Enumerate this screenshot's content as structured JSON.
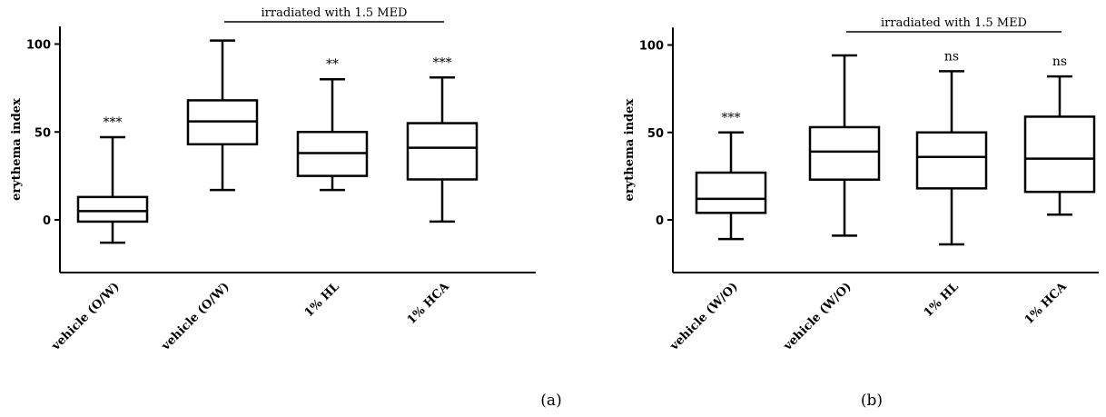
{
  "chart_data": [
    {
      "type": "box",
      "panel_label": "(a)",
      "ylabel": "erythema index",
      "yticks": [
        0,
        50,
        100
      ],
      "ylim": [
        -30,
        110
      ],
      "bracket": {
        "label": "irradiated with 1.5 MED",
        "from_category": 1,
        "to_category": 3
      },
      "categories": [
        "vehicle (O/W)",
        "vehicle (O/W)",
        "1% HL",
        "1% HCA"
      ],
      "boxes": [
        {
          "min": -13,
          "q1": -1,
          "median": 5,
          "q3": 13,
          "max": 47,
          "sig": "***"
        },
        {
          "min": 17,
          "q1": 43,
          "median": 56,
          "q3": 68,
          "max": 102,
          "sig": ""
        },
        {
          "min": 17,
          "q1": 25,
          "median": 38,
          "q3": 50,
          "max": 80,
          "sig": "**"
        },
        {
          "min": -1,
          "q1": 23,
          "median": 41,
          "q3": 55,
          "max": 81,
          "sig": "***"
        }
      ]
    },
    {
      "type": "box",
      "panel_label": "(b)",
      "ylabel": "erythema index",
      "yticks": [
        0,
        50,
        100
      ],
      "ylim": [
        -30,
        110
      ],
      "bracket": {
        "label": "irradiated with 1.5 MED",
        "from_category": 1,
        "to_category": 3
      },
      "categories": [
        "vehicle (W/O)",
        "vehicle (W/O)",
        "1% HL",
        "1% HCA"
      ],
      "boxes": [
        {
          "min": -11,
          "q1": 4,
          "median": 12,
          "q3": 27,
          "max": 50,
          "sig": "***"
        },
        {
          "min": -9,
          "q1": 23,
          "median": 39,
          "q3": 53,
          "max": 94,
          "sig": ""
        },
        {
          "min": -14,
          "q1": 18,
          "median": 36,
          "q3": 50,
          "max": 85,
          "sig": "ns"
        },
        {
          "min": 3,
          "q1": 16,
          "median": 35,
          "q3": 59,
          "max": 82,
          "sig": "ns"
        }
      ]
    }
  ]
}
